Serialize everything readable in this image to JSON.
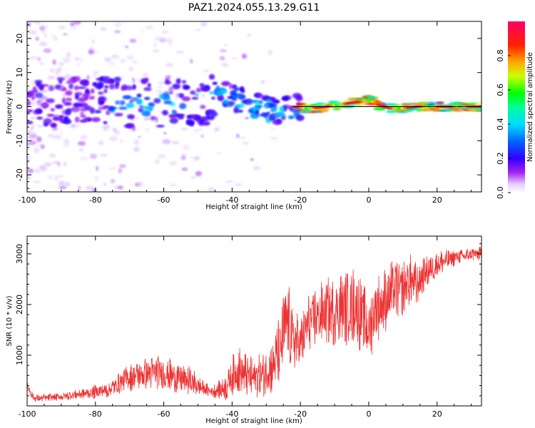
{
  "title": "PAZ1.2024.055.13.29.G11",
  "chart_data": [
    {
      "type": "heatmap",
      "name": "spectrogram",
      "xlabel": "Height of straight line (km)",
      "ylabel": "Frequency (Hz)",
      "xlim": [
        -100,
        33
      ],
      "ylim": [
        -25,
        25
      ],
      "xticks": [
        -100,
        -80,
        -60,
        -40,
        -20,
        0,
        20
      ],
      "xtick_labels": [
        "-100",
        "-80",
        "-60",
        "-40",
        "-20",
        "0",
        "20"
      ],
      "yticks": [
        -20,
        -10,
        0,
        10,
        20
      ],
      "ytick_labels": [
        "-20",
        "-10",
        "0",
        "10",
        "20"
      ],
      "colorbar": {
        "label": "Normalized spectral amplitude",
        "range": [
          0,
          1
        ],
        "ticks": [
          0.0,
          0.2,
          0.4,
          0.6,
          0.8
        ],
        "tick_labels": [
          "0.0",
          "0.2",
          "0.4",
          "0.6",
          "0.8"
        ],
        "colormap": "gist_rainbow_r (white → purple → blue → cyan → green → yellow → red → magenta)"
      },
      "ridge": {
        "description": "spectral amplitude concentrated along a frequency ridge",
        "x": [
          -76,
          -70,
          -64,
          -58,
          -52,
          -46,
          -42,
          -38,
          -34,
          -30,
          -26,
          -22,
          -18,
          -12,
          -6,
          -2,
          0,
          3,
          6,
          10,
          14,
          20,
          26,
          33
        ],
        "y": [
          1.5,
          0.5,
          1.0,
          1.5,
          0.5,
          2.5,
          3.5,
          2.0,
          0.5,
          -1.0,
          -1.5,
          0.0,
          -0.5,
          0.0,
          1.0,
          1.5,
          2.0,
          0.5,
          -0.5,
          -0.5,
          0.0,
          0.0,
          0.0,
          0.0
        ]
      },
      "reference_line_hz": 0
    },
    {
      "type": "line",
      "name": "snr",
      "xlabel": "Height of straight line (km)",
      "ylabel": "SNR (10 * v/v)",
      "xlim": [
        -100,
        33
      ],
      "ylim": [
        0,
        3350
      ],
      "xticks": [
        -100,
        -80,
        -60,
        -40,
        -20,
        0,
        20
      ],
      "xtick_labels": [
        "-100",
        "-80",
        "-60",
        "-40",
        "-20",
        "0",
        "20"
      ],
      "yticks": [
        1000,
        2000,
        3000
      ],
      "ytick_labels": [
        "1000",
        "2000",
        "3000"
      ],
      "color": "#ee3333",
      "x": [
        -100,
        -98,
        -96,
        -94,
        -92,
        -90,
        -88,
        -86,
        -84,
        -82,
        -80,
        -78,
        -76,
        -74,
        -72,
        -70,
        -68,
        -66,
        -64,
        -62,
        -60,
        -58,
        -56,
        -54,
        -52,
        -50,
        -48,
        -46,
        -44,
        -42,
        -40,
        -38,
        -36,
        -34,
        -32,
        -30,
        -28,
        -26,
        -24,
        -22,
        -20,
        -18,
        -16,
        -14,
        -12,
        -10,
        -8,
        -6,
        -4,
        -2,
        0,
        2,
        4,
        6,
        8,
        10,
        12,
        14,
        16,
        18,
        20,
        22,
        24,
        26,
        28,
        30,
        32,
        33
      ],
      "y": [
        400,
        150,
        150,
        160,
        170,
        180,
        200,
        220,
        240,
        250,
        280,
        300,
        320,
        400,
        500,
        550,
        600,
        620,
        650,
        680,
        640,
        600,
        560,
        520,
        480,
        400,
        330,
        280,
        320,
        350,
        600,
        700,
        600,
        550,
        600,
        650,
        800,
        1100,
        1700,
        1300,
        1200,
        1600,
        1750,
        1800,
        1850,
        1900,
        1950,
        1900,
        2000,
        1800,
        1500,
        1950,
        2000,
        2200,
        2300,
        2300,
        2500,
        2350,
        2600,
        2700,
        2800,
        2850,
        2900,
        2950,
        2950,
        3000,
        3000,
        3000
      ],
      "amplitude": [
        120,
        80,
        80,
        80,
        80,
        80,
        100,
        100,
        120,
        120,
        150,
        150,
        180,
        200,
        250,
        300,
        300,
        330,
        350,
        350,
        350,
        350,
        330,
        320,
        300,
        250,
        150,
        120,
        200,
        300,
        400,
        500,
        500,
        450,
        450,
        500,
        600,
        800,
        900,
        700,
        600,
        600,
        650,
        650,
        700,
        750,
        800,
        800,
        800,
        800,
        700,
        700,
        700,
        700,
        650,
        600,
        550,
        500,
        400,
        350,
        300,
        250,
        200,
        150,
        150,
        150,
        150,
        150
      ]
    }
  ]
}
